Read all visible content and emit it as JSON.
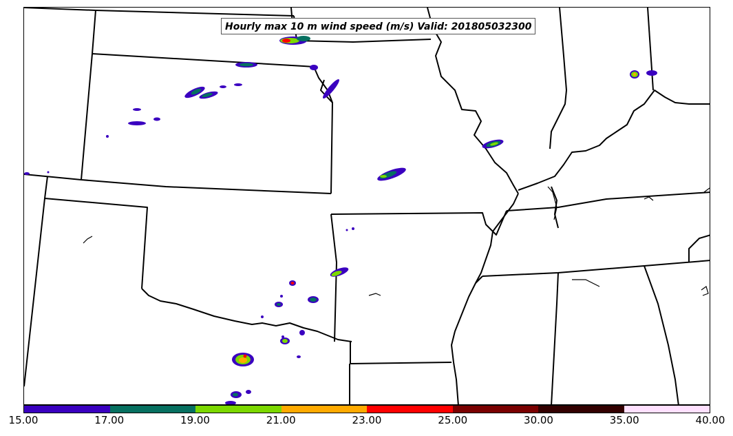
{
  "map": {
    "title": "Hourly max 10 m wind speed (m/s) Valid: 201805032300"
  },
  "colorbar": {
    "ticks": [
      "15.00",
      "17.00",
      "19.00",
      "21.00",
      "23.00",
      "25.00",
      "30.00",
      "35.00",
      "40.00"
    ],
    "colors": [
      "#3a00c0",
      "#067060",
      "#7cd800",
      "#ffaa00",
      "#ff0000",
      "#7a0000",
      "#330000",
      "#ffe0ff"
    ]
  },
  "legend_colors": {
    "state_boundaries": "#000000",
    "background": "#ffffff"
  }
}
